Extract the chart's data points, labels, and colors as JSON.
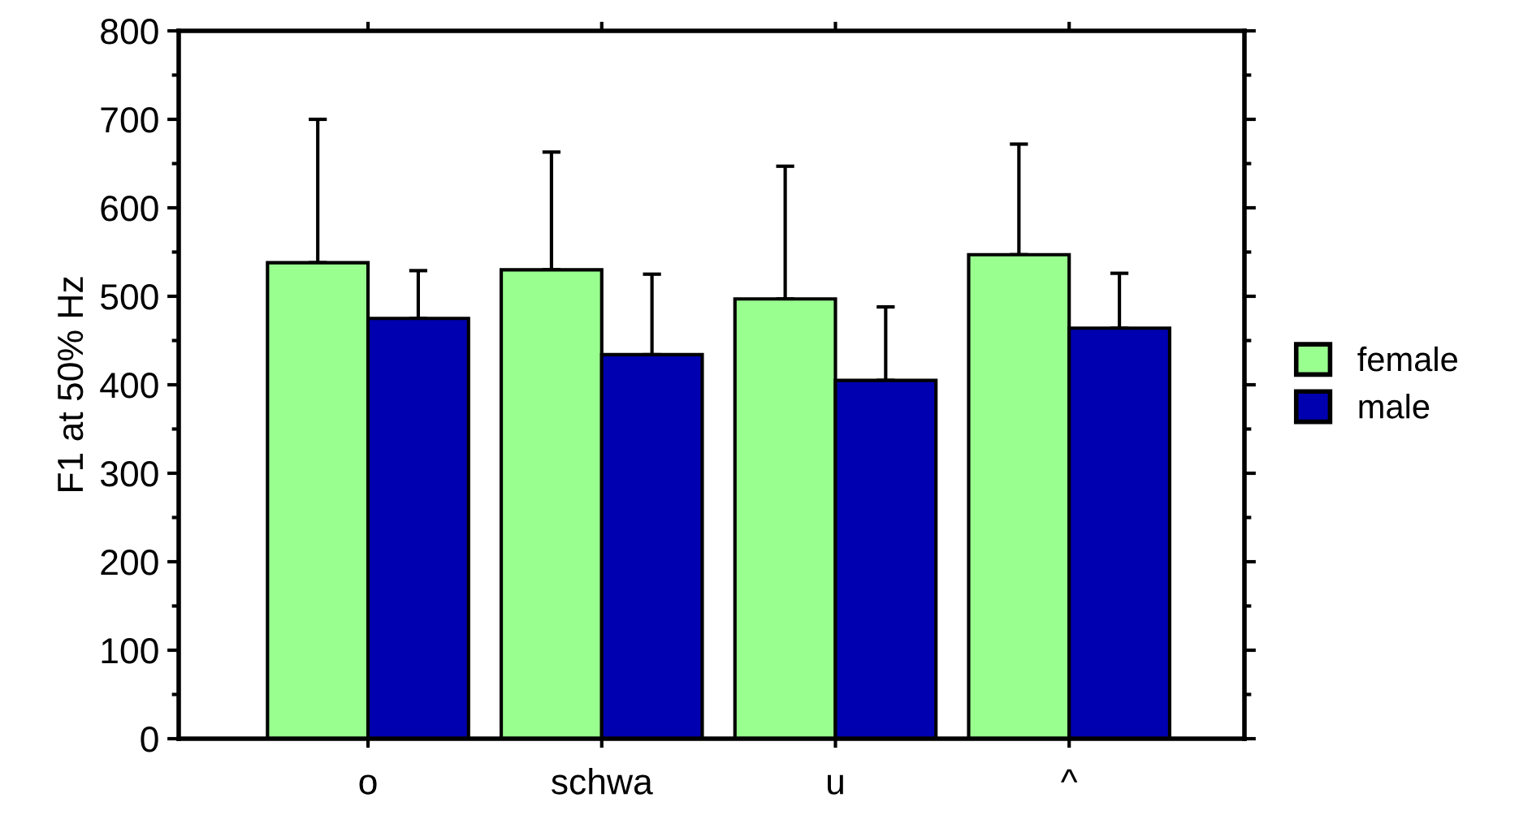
{
  "chart_data": {
    "type": "bar",
    "ylabel": "F1 at 50% Hz",
    "categories": [
      "o",
      "schwa",
      "u",
      "^"
    ],
    "series": [
      {
        "name": "female",
        "color": "#99ff8f",
        "values": [
          538,
          530,
          497,
          547
        ],
        "errors": [
          [
            538,
            700
          ],
          [
            530,
            663
          ],
          [
            497,
            647
          ],
          [
            547,
            672
          ]
        ]
      },
      {
        "name": "male",
        "color": "#0000b0",
        "values": [
          475,
          434,
          405,
          464
        ],
        "errors": [
          [
            475,
            529
          ],
          [
            434,
            525
          ],
          [
            405,
            488
          ],
          [
            464,
            526
          ]
        ]
      }
    ],
    "ylim": [
      0,
      800
    ],
    "yticks": [
      0,
      100,
      200,
      300,
      400,
      500,
      600,
      700,
      800
    ],
    "grid": false,
    "legend": "right"
  }
}
